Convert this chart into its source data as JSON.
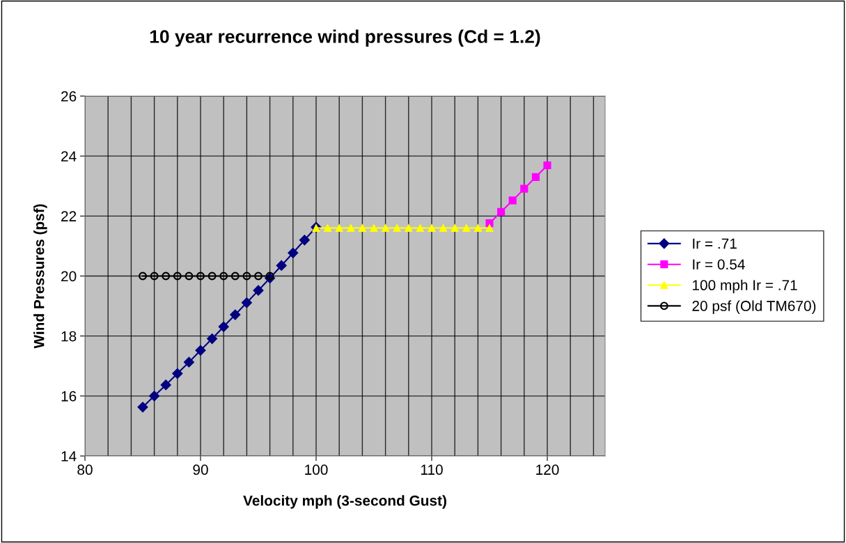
{
  "chart_data": {
    "type": "line",
    "title": "10 year recurrence wind pressures (Cd = 1.2)",
    "xlabel": "Velocity mph (3-second Gust)",
    "ylabel": "Wind Pressures (psf)",
    "series": [
      {
        "name": "Ir = .71",
        "color": "#000080",
        "marker": "diamond",
        "x": [
          85,
          86,
          87,
          88,
          89,
          90,
          91,
          92,
          93,
          94,
          95,
          96,
          97,
          98,
          99,
          100
        ],
        "values": [
          15.63,
          16.0,
          16.37,
          16.75,
          17.13,
          17.52,
          17.91,
          18.31,
          18.71,
          19.11,
          19.52,
          19.93,
          20.35,
          20.77,
          21.2,
          21.63
        ]
      },
      {
        "name": "Ir = 0.54",
        "color": "#ff00ff",
        "marker": "square",
        "x": [
          115,
          116,
          117,
          118,
          119,
          120
        ],
        "values": [
          21.76,
          22.14,
          22.52,
          22.91,
          23.3,
          23.69
        ]
      },
      {
        "name": "100 mph Ir = .71",
        "color": "#ffff00",
        "marker": "triangle",
        "x": [
          100,
          101,
          102,
          103,
          104,
          105,
          106,
          107,
          108,
          109,
          110,
          111,
          112,
          113,
          114,
          115
        ],
        "values": [
          21.6,
          21.6,
          21.6,
          21.6,
          21.6,
          21.6,
          21.6,
          21.6,
          21.6,
          21.6,
          21.6,
          21.6,
          21.6,
          21.6,
          21.6,
          21.6
        ]
      },
      {
        "name": "20 psf (Old TM670)",
        "color": "#000000",
        "marker": "circle",
        "x": [
          85,
          86,
          87,
          88,
          89,
          90,
          91,
          92,
          93,
          94,
          95,
          96
        ],
        "values": [
          20,
          20,
          20,
          20,
          20,
          20,
          20,
          20,
          20,
          20,
          20,
          20
        ]
      }
    ],
    "xlim": [
      80,
      125
    ],
    "ylim": [
      14,
      26
    ],
    "xticks": [
      80,
      {
        "value": 82,
        "label": null
      },
      {
        "value": 84,
        "label": null
      },
      {
        "value": 86,
        "label": null
      },
      {
        "value": 88,
        "label": null
      },
      90,
      {
        "value": 92,
        "label": null
      },
      {
        "value": 94,
        "label": null
      },
      {
        "value": 96,
        "label": null
      },
      {
        "value": 98,
        "label": null
      },
      100,
      {
        "value": 102,
        "label": null
      },
      {
        "value": 104,
        "label": null
      },
      {
        "value": 106,
        "label": null
      },
      {
        "value": 108,
        "label": null
      },
      110,
      {
        "value": 112,
        "label": null
      },
      {
        "value": 114,
        "label": null
      },
      {
        "value": 116,
        "label": null
      },
      {
        "value": 118,
        "label": null
      },
      120,
      {
        "value": 122,
        "label": null
      },
      {
        "value": 124,
        "label": null
      }
    ],
    "yticks": [
      14,
      16,
      18,
      20,
      22,
      24,
      26
    ],
    "grid": true,
    "legend": "right",
    "line_style": "solid"
  }
}
